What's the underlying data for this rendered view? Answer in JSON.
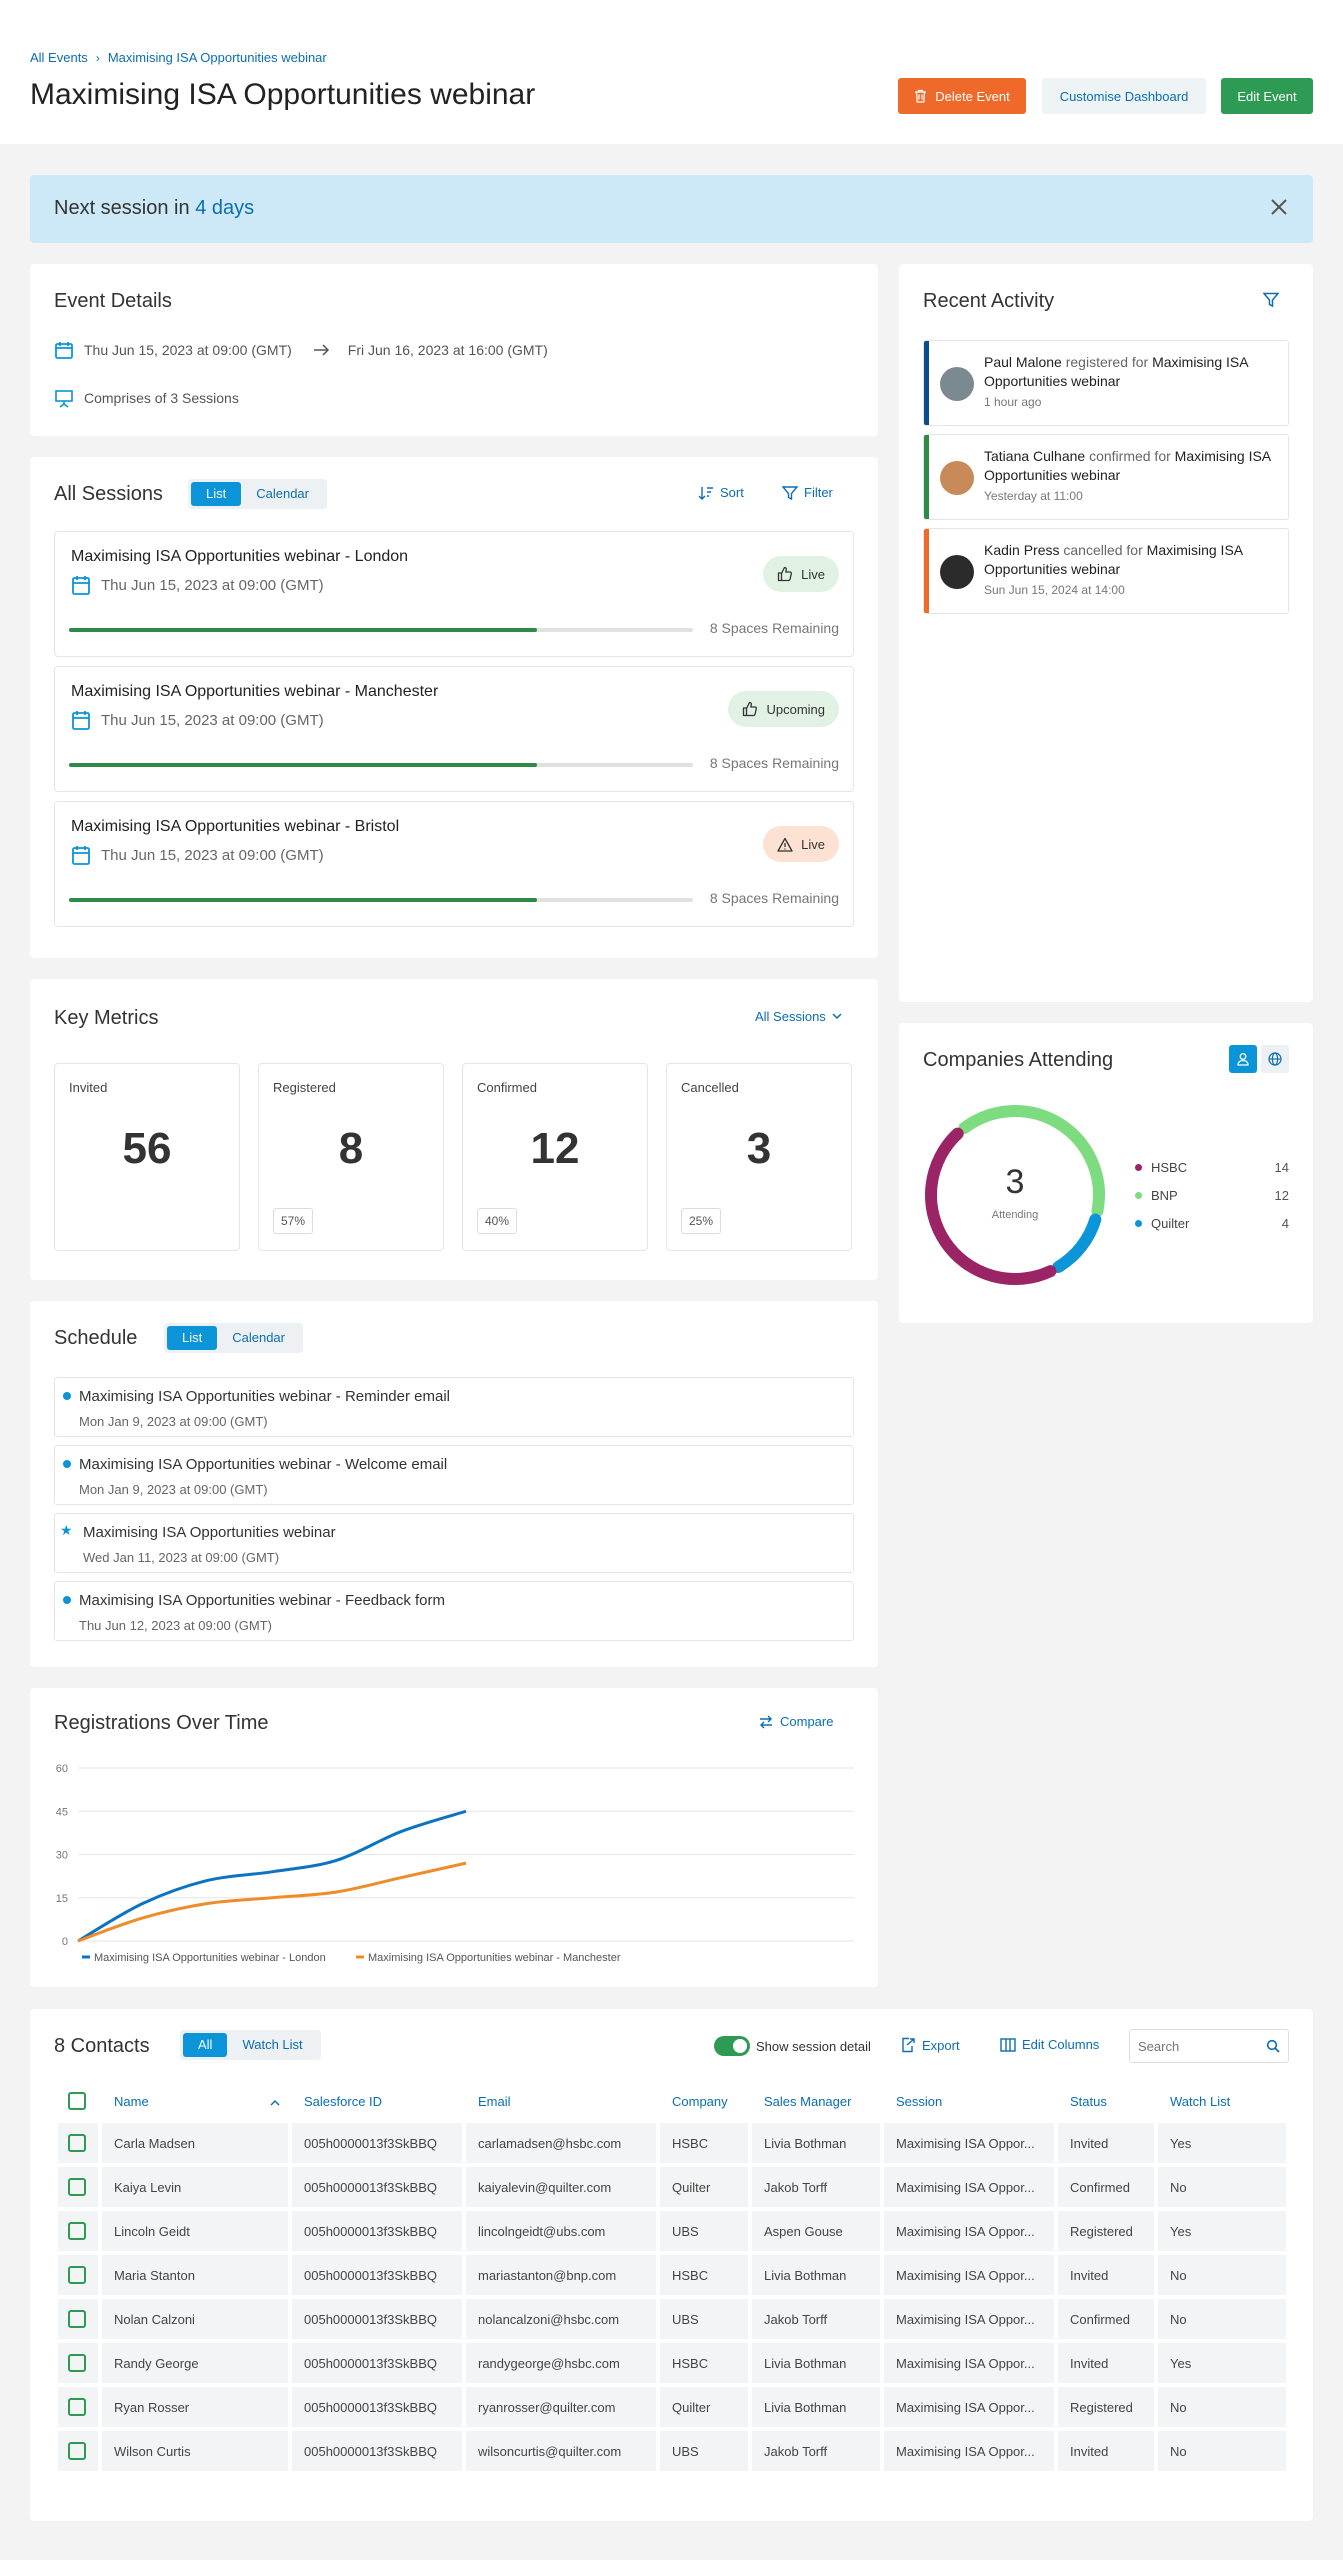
{
  "breadcrumb": {
    "root": "All Events",
    "current": "Maximising ISA Opportunities webinar"
  },
  "page": {
    "title": "Maximising ISA Opportunities webinar"
  },
  "header_buttons": {
    "delete": "Delete Event",
    "customise": "Customise Dashboard",
    "edit": "Edit Event"
  },
  "banner": {
    "prefix": "Next session in",
    "highlight": "4 days"
  },
  "event_details": {
    "title": "Event Details",
    "start": "Thu Jun 15, 2023 at 09:00 (GMT)",
    "end": "Fri Jun 16, 2023 at 16:00 (GMT)",
    "sessions_note": "Comprises of 3 Sessions"
  },
  "all_sessions": {
    "title": "All Sessions",
    "view_options": [
      "List",
      "Calendar"
    ],
    "sort_label": "Sort",
    "filter_label": "Filter",
    "sessions": [
      {
        "title": "Maximising ISA Opportunities webinar - London",
        "date": "Thu Jun 15, 2023 at 09:00 (GMT)",
        "badge": "Live",
        "badge_type": "like",
        "progress": 0.75,
        "spaces": "8 Spaces Remaining"
      },
      {
        "title": "Maximising ISA Opportunities webinar - Manchester",
        "date": "Thu Jun 15, 2023 at 09:00 (GMT)",
        "badge": "Upcoming",
        "badge_type": "like",
        "progress": 0.75,
        "spaces": "8 Spaces Remaining"
      },
      {
        "title": "Maximising ISA Opportunities webinar - Bristol",
        "date": "Thu Jun 15, 2023 at 09:00 (GMT)",
        "badge": "Live",
        "badge_type": "warning",
        "progress": 0.75,
        "spaces": "8 Spaces Remaining"
      }
    ]
  },
  "key_metrics": {
    "title": "Key Metrics",
    "filter_label": "All Sessions",
    "metrics": [
      {
        "label": "Invited",
        "value": "56",
        "pct": ""
      },
      {
        "label": "Registered",
        "value": "8",
        "pct": "57%"
      },
      {
        "label": "Confirmed",
        "value": "12",
        "pct": "40%"
      },
      {
        "label": "Cancelled",
        "value": "3",
        "pct": "25%"
      }
    ]
  },
  "schedule": {
    "title": "Schedule",
    "view_options": [
      "List",
      "Calendar"
    ],
    "items": [
      {
        "title": "Maximising ISA Opportunities webinar - Reminder email",
        "date": "Mon Jan 9, 2023 at 09:00 (GMT)",
        "marker": "dot"
      },
      {
        "title": "Maximising ISA Opportunities webinar - Welcome email",
        "date": "Mon Jan 9, 2023 at 09:00 (GMT)",
        "marker": "dot"
      },
      {
        "title": "Maximising ISA Opportunities webinar",
        "date": "Wed Jan 11, 2023 at 09:00 (GMT)",
        "marker": "star"
      },
      {
        "title": "Maximising ISA Opportunities webinar - Feedback form",
        "date": "Thu Jun 12, 2023 at 09:00 (GMT)",
        "marker": "dot"
      }
    ]
  },
  "recent_activity": {
    "title": "Recent Activity",
    "items": [
      {
        "name": "Paul Malone",
        "verb": "registered for",
        "target": "Maximising ISA Opportunities webinar",
        "time": "1 hour ago",
        "color": "#0b4d8c",
        "avatar_color": "#7a8a90"
      },
      {
        "name": "Tatiana Culhane",
        "verb": "confirmed for",
        "target": "Maximising ISA Opportunities webinar",
        "time": "Yesterday at 11:00",
        "color": "#2e8b47",
        "avatar_color": "#c98a5a"
      },
      {
        "name": "Kadin Press",
        "verb": "cancelled for",
        "target": "Maximising ISA Opportunities webinar",
        "time": "Sun Jun 15, 2024 at 14:00",
        "color": "#ef6a2a",
        "avatar_color": "#2b2b2b"
      }
    ]
  },
  "companies": {
    "title": "Companies Attending",
    "total": "3",
    "total_label": "Attending",
    "items": [
      {
        "name": "HSBC",
        "value": 14,
        "color": "#9b2467"
      },
      {
        "name": "BNP",
        "value": 12,
        "color": "#7ddc7f"
      },
      {
        "name": "Quilter",
        "value": 4,
        "color": "#0b94d8"
      }
    ]
  },
  "registrations": {
    "title": "Registrations Over Time",
    "compare_label": "Compare"
  },
  "chart_data": {
    "type": "line",
    "title": "Registrations Over Time",
    "ylim": [
      0,
      60
    ],
    "yticks": [
      0,
      15,
      30,
      45,
      60
    ],
    "grid": true,
    "legend_position": "bottom-left",
    "series": [
      {
        "name": "Maximising ISA Opportunities webinar - London",
        "color": "#0b73c2",
        "x": [
          0,
          1,
          2,
          3,
          4,
          5,
          6
        ],
        "values": [
          0,
          13,
          21,
          24,
          28,
          38,
          45
        ]
      },
      {
        "name": "Maximising ISA Opportunities webinar - Manchester",
        "color": "#ef8c2a",
        "x": [
          0,
          1,
          2,
          3,
          4,
          5,
          6
        ],
        "values": [
          0,
          8,
          13,
          15,
          17,
          22,
          27
        ]
      }
    ]
  },
  "contacts": {
    "title": "8 Contacts",
    "view_options": [
      "All",
      "Watch List"
    ],
    "show_session_label": "Show session detail",
    "export_label": "Export",
    "edit_columns_label": "Edit Columns",
    "search_placeholder": "Search",
    "columns": [
      "Name",
      "Salesforce ID",
      "Email",
      "Company",
      "Sales Manager",
      "Session",
      "Status",
      "Watch List"
    ],
    "rows": [
      [
        "Carla Madsen",
        "005h0000013f3SkBBQ",
        "carlamadsen@hsbc.com",
        "HSBC",
        "Livia  Bothman",
        "Maximising ISA Oppor...",
        "Invited",
        "Yes"
      ],
      [
        "Kaiya Levin",
        "005h0000013f3SkBBQ",
        "kaiyalevin@quilter.com",
        "Quilter",
        "Jakob Torff",
        "Maximising ISA Oppor...",
        "Confirmed",
        "No"
      ],
      [
        "Lincoln Geidt",
        "005h0000013f3SkBBQ",
        "lincolngeidt@ubs.com",
        "UBS",
        "Aspen Gouse",
        "Maximising ISA Oppor...",
        "Registered",
        "Yes"
      ],
      [
        "Maria Stanton",
        "005h0000013f3SkBBQ",
        "mariastanton@bnp.com",
        "HSBC",
        "Livia  Bothman",
        "Maximising ISA Oppor...",
        "Invited",
        "No"
      ],
      [
        "Nolan Calzoni",
        "005h0000013f3SkBBQ",
        "nolancalzoni@hsbc.com",
        "UBS",
        "Jakob Torff",
        "Maximising ISA Oppor...",
        "Confirmed",
        "No"
      ],
      [
        "Randy George",
        "005h0000013f3SkBBQ",
        "randygeorge@hsbc.com",
        "HSBC",
        "Livia  Bothman",
        "Maximising ISA Oppor...",
        "Invited",
        "Yes"
      ],
      [
        "Ryan Rosser",
        "005h0000013f3SkBBQ",
        "ryanrosser@quilter.com",
        "Quilter",
        "Livia  Bothman",
        "Maximising ISA Oppor...",
        "Registered",
        "No"
      ],
      [
        "Wilson Curtis",
        "005h0000013f3SkBBQ",
        "wilsoncurtis@quilter.com",
        "UBS",
        "Jakob Torff",
        "Maximising ISA Oppor...",
        "Invited",
        "No"
      ]
    ]
  }
}
